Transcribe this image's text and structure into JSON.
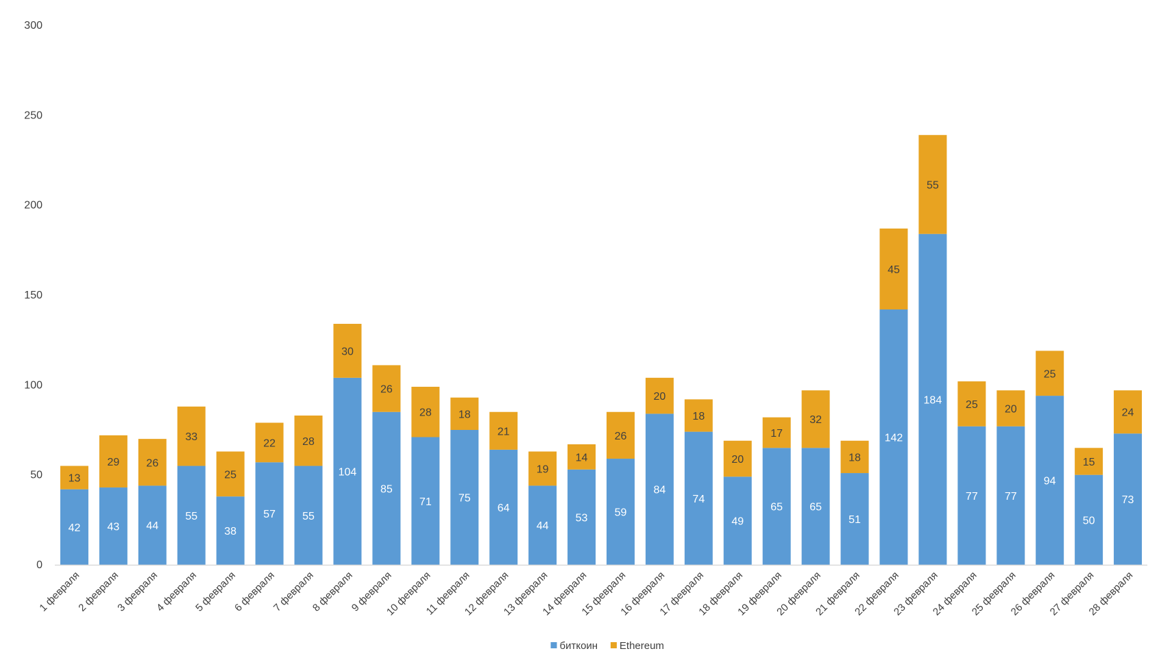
{
  "chart_data": {
    "type": "bar",
    "stacked": true,
    "title": "",
    "xlabel": "",
    "ylabel": "",
    "ylim": [
      0,
      300
    ],
    "yticks": [
      0,
      50,
      100,
      150,
      200,
      250,
      300
    ],
    "grid": false,
    "legend_position": "bottom",
    "categories": [
      "1 февраля",
      "2 февраля",
      "3 февраля",
      "4 февраля",
      "5 февраля",
      "6 февраля",
      "7 февраля",
      "8 февраля",
      "9 февраля",
      "10 февраля",
      "11 февраля",
      "12 февраля",
      "13 февраля",
      "14 февраля",
      "15 февраля",
      "16 февраля",
      "17 февраля",
      "18 февраля",
      "19 февраля",
      "20 февраля",
      "21 февраля",
      "22 февраля",
      "23 февраля",
      "24 февраля",
      "25 февраля",
      "26 февраля",
      "27 февраля",
      "28 февраля"
    ],
    "series": [
      {
        "name": "биткоин",
        "color": "#5b9bd5",
        "label_color": "#ffffff",
        "values": [
          42,
          43,
          44,
          55,
          38,
          57,
          55,
          104,
          85,
          71,
          75,
          64,
          44,
          53,
          59,
          84,
          74,
          49,
          65,
          65,
          51,
          142,
          184,
          77,
          77,
          94,
          50,
          73
        ]
      },
      {
        "name": "Ethereum",
        "color": "#e8a321",
        "label_color": "#404040",
        "values": [
          13,
          29,
          26,
          33,
          25,
          22,
          28,
          30,
          26,
          28,
          18,
          21,
          19,
          14,
          26,
          20,
          18,
          20,
          17,
          32,
          18,
          45,
          55,
          25,
          20,
          25,
          15,
          24
        ]
      }
    ]
  }
}
